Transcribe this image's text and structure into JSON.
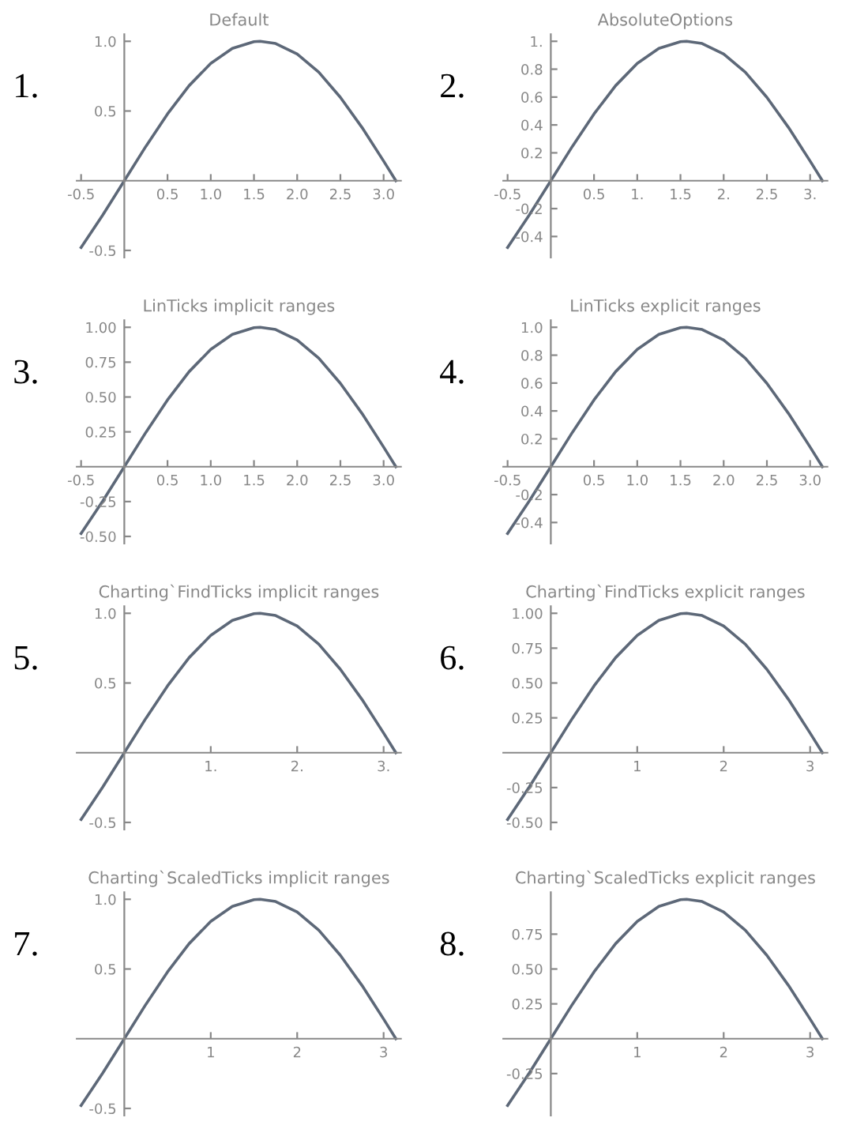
{
  "chart_data": [
    {
      "type": "line",
      "title": "Default",
      "annotations": [
        "1."
      ],
      "color": "#5d6878",
      "x": [
        -0.5,
        -0.25,
        0,
        0.25,
        0.5,
        0.75,
        1,
        1.25,
        1.5,
        1.5708,
        1.75,
        2,
        2.25,
        2.5,
        2.75,
        3,
        3.1416
      ],
      "values": [
        -0.479,
        -0.247,
        0,
        0.247,
        0.479,
        0.682,
        0.841,
        0.949,
        0.997,
        1,
        0.984,
        0.909,
        0.778,
        0.598,
        0.382,
        0.141,
        0
      ],
      "xlim": [
        -0.55,
        3.2
      ],
      "ylim": [
        -0.55,
        1.05
      ],
      "xticks": [
        -0.5,
        0.5,
        {
          "value": 1,
          "label": "1.0"
        },
        1.5,
        {
          "value": 2,
          "label": "2.0"
        },
        2.5,
        {
          "value": 3,
          "label": "3.0"
        }
      ],
      "yticks": [
        -0.5,
        0.5,
        {
          "value": 1,
          "label": "1.0"
        }
      ],
      "grid": false,
      "legend": false
    },
    {
      "type": "line",
      "title": "AbsoluteOptions",
      "annotations": [
        "2."
      ],
      "color": "#5d6878",
      "x": [
        -0.5,
        -0.25,
        0,
        0.25,
        0.5,
        0.75,
        1,
        1.25,
        1.5,
        1.5708,
        1.75,
        2,
        2.25,
        2.5,
        2.75,
        3,
        3.1416
      ],
      "values": [
        -0.479,
        -0.247,
        0,
        0.247,
        0.479,
        0.682,
        0.841,
        0.949,
        0.997,
        1,
        0.984,
        0.909,
        0.778,
        0.598,
        0.382,
        0.141,
        0
      ],
      "xlim": [
        -0.55,
        3.2
      ],
      "ylim": [
        -0.55,
        1.05
      ],
      "xticks": [
        -0.5,
        0.5,
        {
          "value": 1,
          "label": "1."
        },
        1.5,
        {
          "value": 2,
          "label": "2."
        },
        2.5,
        {
          "value": 3,
          "label": "3."
        }
      ],
      "yticks": [
        -0.4,
        -0.2,
        0.2,
        0.4,
        0.6,
        0.8,
        {
          "value": 1,
          "label": "1."
        }
      ],
      "grid": false,
      "legend": false
    },
    {
      "type": "line",
      "title": "LinTicks implicit ranges",
      "annotations": [
        "3."
      ],
      "color": "#5d6878",
      "x": [
        -0.5,
        -0.25,
        0,
        0.25,
        0.5,
        0.75,
        1,
        1.25,
        1.5,
        1.5708,
        1.75,
        2,
        2.25,
        2.5,
        2.75,
        3,
        3.1416
      ],
      "values": [
        -0.479,
        -0.247,
        0,
        0.247,
        0.479,
        0.682,
        0.841,
        0.949,
        0.997,
        1,
        0.984,
        0.909,
        0.778,
        0.598,
        0.382,
        0.141,
        0
      ],
      "xlim": [
        -0.55,
        3.2
      ],
      "ylim": [
        -0.55,
        1.05
      ],
      "xticks": [
        -0.5,
        0.5,
        {
          "value": 1,
          "label": "1.0"
        },
        1.5,
        {
          "value": 2,
          "label": "2.0"
        },
        2.5,
        {
          "value": 3,
          "label": "3.0"
        }
      ],
      "yticks": [
        {
          "value": -0.5,
          "label": "-0.50"
        },
        -0.25,
        0.25,
        {
          "value": 0.5,
          "label": "0.50"
        },
        0.75,
        {
          "value": 1,
          "label": "1.00"
        }
      ],
      "grid": false,
      "legend": false
    },
    {
      "type": "line",
      "title": "LinTicks explicit ranges",
      "annotations": [
        "4."
      ],
      "color": "#5d6878",
      "x": [
        -0.5,
        -0.25,
        0,
        0.25,
        0.5,
        0.75,
        1,
        1.25,
        1.5,
        1.5708,
        1.75,
        2,
        2.25,
        2.5,
        2.75,
        3,
        3.1416
      ],
      "values": [
        -0.479,
        -0.247,
        0,
        0.247,
        0.479,
        0.682,
        0.841,
        0.949,
        0.997,
        1,
        0.984,
        0.909,
        0.778,
        0.598,
        0.382,
        0.141,
        0
      ],
      "xlim": [
        -0.55,
        3.2
      ],
      "ylim": [
        -0.55,
        1.05
      ],
      "xticks": [
        -0.5,
        0.5,
        {
          "value": 1,
          "label": "1.0"
        },
        1.5,
        {
          "value": 2,
          "label": "2.0"
        },
        2.5,
        {
          "value": 3,
          "label": "3.0"
        }
      ],
      "yticks": [
        -0.4,
        -0.2,
        0.2,
        0.4,
        0.6,
        0.8,
        {
          "value": 1,
          "label": "1.0"
        }
      ],
      "grid": false,
      "legend": false
    },
    {
      "type": "line",
      "title": "Charting`FindTicks implicit ranges",
      "annotations": [
        "5."
      ],
      "color": "#5d6878",
      "x": [
        -0.5,
        -0.25,
        0,
        0.25,
        0.5,
        0.75,
        1,
        1.25,
        1.5,
        1.5708,
        1.75,
        2,
        2.25,
        2.5,
        2.75,
        3,
        3.1416
      ],
      "values": [
        -0.479,
        -0.247,
        0,
        0.247,
        0.479,
        0.682,
        0.841,
        0.949,
        0.997,
        1,
        0.984,
        0.909,
        0.778,
        0.598,
        0.382,
        0.141,
        0
      ],
      "xlim": [
        -0.55,
        3.2
      ],
      "ylim": [
        -0.55,
        1.05
      ],
      "xticks": [
        {
          "value": 1,
          "label": "1."
        },
        {
          "value": 2,
          "label": "2."
        },
        {
          "value": 3,
          "label": "3."
        }
      ],
      "yticks": [
        -0.5,
        0.5,
        {
          "value": 1,
          "label": "1.0"
        }
      ],
      "grid": false,
      "legend": false
    },
    {
      "type": "line",
      "title": "Charting`FindTicks explicit ranges",
      "annotations": [
        "6."
      ],
      "color": "#5d6878",
      "x": [
        -0.5,
        -0.25,
        0,
        0.25,
        0.5,
        0.75,
        1,
        1.25,
        1.5,
        1.5708,
        1.75,
        2,
        2.25,
        2.5,
        2.75,
        3,
        3.1416
      ],
      "values": [
        -0.479,
        -0.247,
        0,
        0.247,
        0.479,
        0.682,
        0.841,
        0.949,
        0.997,
        1,
        0.984,
        0.909,
        0.778,
        0.598,
        0.382,
        0.141,
        0
      ],
      "xlim": [
        -0.55,
        3.2
      ],
      "ylim": [
        -0.55,
        1.05
      ],
      "xticks": [
        1,
        2,
        3
      ],
      "yticks": [
        {
          "value": -0.5,
          "label": "-0.50"
        },
        -0.25,
        0.25,
        {
          "value": 0.5,
          "label": "0.50"
        },
        0.75,
        {
          "value": 1,
          "label": "1.00"
        }
      ],
      "grid": false,
      "legend": false
    },
    {
      "type": "line",
      "title": "Charting`ScaledTicks implicit ranges",
      "annotations": [
        "7."
      ],
      "color": "#5d6878",
      "x": [
        -0.5,
        -0.25,
        0,
        0.25,
        0.5,
        0.75,
        1,
        1.25,
        1.5,
        1.5708,
        1.75,
        2,
        2.25,
        2.5,
        2.75,
        3,
        3.1416
      ],
      "values": [
        -0.479,
        -0.247,
        0,
        0.247,
        0.479,
        0.682,
        0.841,
        0.949,
        0.997,
        1,
        0.984,
        0.909,
        0.778,
        0.598,
        0.382,
        0.141,
        0
      ],
      "xlim": [
        -0.55,
        3.2
      ],
      "ylim": [
        -0.55,
        1.05
      ],
      "xticks": [
        1,
        2,
        3
      ],
      "yticks": [
        -0.5,
        0.5,
        {
          "value": 1,
          "label": "1.0"
        }
      ],
      "grid": false,
      "legend": false
    },
    {
      "type": "line",
      "title": "Charting`ScaledTicks explicit ranges",
      "annotations": [
        "8."
      ],
      "color": "#5d6878",
      "x": [
        -0.5,
        -0.25,
        0,
        0.25,
        0.5,
        0.75,
        1,
        1.25,
        1.5,
        1.5708,
        1.75,
        2,
        2.25,
        2.5,
        2.75,
        3,
        3.1416
      ],
      "values": [
        -0.479,
        -0.247,
        0,
        0.247,
        0.479,
        0.682,
        0.841,
        0.949,
        0.997,
        1,
        0.984,
        0.909,
        0.778,
        0.598,
        0.382,
        0.141,
        0
      ],
      "xlim": [
        -0.55,
        3.2
      ],
      "ylim": [
        -0.55,
        1.05
      ],
      "xticks": [
        1,
        2,
        3
      ],
      "yticks": [
        -0.25,
        0.25,
        {
          "value": 0.5,
          "label": "0.50"
        },
        0.75
      ],
      "grid": false,
      "legend": false
    }
  ]
}
